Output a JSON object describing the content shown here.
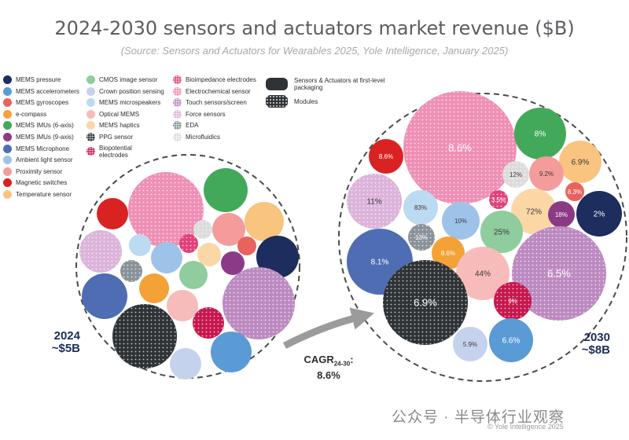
{
  "title": "2024-2030 sensors and actuators market revenue ($B)",
  "subtitle": "(Source: Sensors and Actuators for Wearables 2025, Yole Intelligence, January 2025)",
  "watermark": "公众号 · 半导体行业观察",
  "copyright": "© Yole Intelligence 2025",
  "cagr": {
    "label": "CAGR",
    "sub": "24-30",
    "colon": ":",
    "value": "8.6%"
  },
  "chart_data": {
    "type": "bubble",
    "title": "2024-2030 sensors and actuators market revenue ($B)",
    "cagr_2024_2030": "8.6%",
    "groups": [
      {
        "year": "2024",
        "total": "~$5B"
      },
      {
        "year": "2030",
        "total": "~$8B"
      }
    ],
    "legend": [
      {
        "name": "MEMS pressure",
        "color": "#1c2d5e",
        "dotted": false
      },
      {
        "name": "MEMS accelerometers",
        "color": "#5b9bd5",
        "dotted": false
      },
      {
        "name": "MEMS gyroscopes",
        "color": "#e8625e",
        "dotted": false
      },
      {
        "name": "e-compass",
        "color": "#f4a136",
        "dotted": false
      },
      {
        "name": "MEMS IMUs (6-axis)",
        "color": "#43a95a",
        "dotted": false
      },
      {
        "name": "MEMS IMUs (9-axis)",
        "color": "#8b3b86",
        "dotted": false
      },
      {
        "name": "MEMS Microphone",
        "color": "#4f6db3",
        "dotted": false
      },
      {
        "name": "Ambient light sensor",
        "color": "#9ec3e8",
        "dotted": false
      },
      {
        "name": "Proximity sensor",
        "color": "#f39c9b",
        "dotted": false
      },
      {
        "name": "Magnetic switches",
        "color": "#d92322",
        "dotted": false
      },
      {
        "name": "Temperature sensor",
        "color": "#f9c47f",
        "dotted": false
      },
      {
        "name": "CMOS image sensor",
        "color": "#8fcc9e",
        "dotted": false
      },
      {
        "name": "Crown position sensing",
        "color": "#c5d2ee",
        "dotted": false
      },
      {
        "name": "MEMS microspeakers",
        "color": "#bcdaf1",
        "dotted": false
      },
      {
        "name": "Optical MEMS",
        "color": "#f7bcba",
        "dotted": false
      },
      {
        "name": "MEMS haptics",
        "color": "#fcd7a6",
        "dotted": false
      },
      {
        "name": "PPG sensor",
        "color": "#2f3336",
        "dotted": true
      },
      {
        "name": "Biopotential electrodes",
        "color": "#c8164e",
        "dotted": true
      },
      {
        "name": "Bioimpedance electrodes",
        "color": "#e0417a",
        "dotted": true
      },
      {
        "name": "Electrochemical sensor",
        "color": "#ef8fb5",
        "dotted": true
      },
      {
        "name": "Touch sensors/screen",
        "color": "#bc8ac1",
        "dotted": true
      },
      {
        "name": "Force sensors",
        "color": "#dcb3db",
        "dotted": true
      },
      {
        "name": "EDA",
        "color": "#8a9299",
        "dotted": true
      },
      {
        "name": "Microfluidics",
        "color": "#dcdcdc",
        "dotted": true
      }
    ],
    "legend_packaging": [
      {
        "name": "Sensors & Actuators at first-level packaging",
        "color": "#2f3336",
        "dotted": false
      },
      {
        "name": "Modules",
        "color": "#2f3336",
        "dotted": true
      }
    ],
    "bubbles_2030_labels": [
      {
        "category": "Electrochemical sensor",
        "label": "8.6%"
      },
      {
        "category": "MEMS IMUs (6-axis)",
        "label": "8%"
      },
      {
        "category": "Magnetic switches",
        "label": "8.6%"
      },
      {
        "category": "Temperature sensor",
        "label": "6.9%"
      },
      {
        "category": "Microfluidics",
        "label": "12%"
      },
      {
        "category": "Proximity sensor",
        "label": "9.2%"
      },
      {
        "category": "MEMS gyroscopes",
        "label": "8.3%"
      },
      {
        "category": "Force sensors",
        "label": "11%"
      },
      {
        "category": "MEMS microspeakers",
        "label": "83%"
      },
      {
        "category": "Bioimpedance electrodes",
        "label": "3.5%"
      },
      {
        "category": "MEMS haptics",
        "label": "72%"
      },
      {
        "category": "MEMS IMUs (9-axis)",
        "label": "18%"
      },
      {
        "category": "MEMS pressure",
        "label": "2%"
      },
      {
        "category": "Ambient light sensor",
        "label": "10%"
      },
      {
        "category": "EDA",
        "label": "13%"
      },
      {
        "category": "CMOS image sensor",
        "label": "25%"
      },
      {
        "category": "MEMS Microphone",
        "label": "8.1%"
      },
      {
        "category": "e-compass",
        "label": "8.6%"
      },
      {
        "category": "Optical MEMS",
        "label": "44%"
      },
      {
        "category": "Touch sensors/screen",
        "label": "6.5%"
      },
      {
        "category": "PPG sensor",
        "label": "6.9%"
      },
      {
        "category": "Biopotential electrodes",
        "label": "9%"
      },
      {
        "category": "Crown position sensing",
        "label": "5.9%"
      },
      {
        "category": "MEMS accelerometers",
        "label": "6.6%"
      }
    ]
  }
}
